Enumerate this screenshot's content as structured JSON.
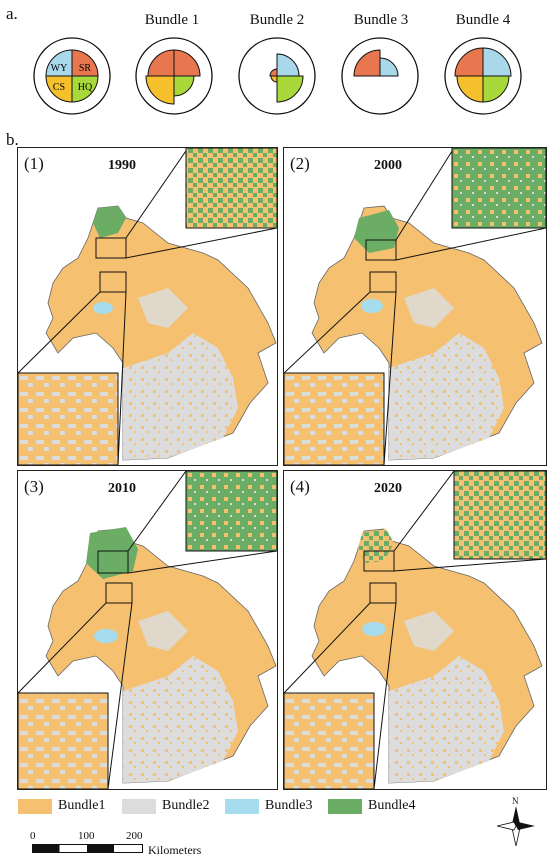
{
  "section_a": {
    "label": "a."
  },
  "section_b": {
    "label": "b."
  },
  "pie_key": {
    "labels": [
      "WY",
      "SR",
      "CS",
      "HQ"
    ]
  },
  "bundles": [
    {
      "title": "Bundle 1"
    },
    {
      "title": "Bundle 2"
    },
    {
      "title": "Bundle 3"
    },
    {
      "title": "Bundle 4"
    }
  ],
  "colors": {
    "WY": "#a8d8ea",
    "SR": "#e8764f",
    "CS": "#f5c02c",
    "HQ": "#a8d83a",
    "bundle1": "#f5c06f",
    "bundle2": "#dcdcdc",
    "bundle3": "#a6dcee",
    "bundle4": "#6cad66"
  },
  "maps": [
    {
      "num": "(1)",
      "year": "1990"
    },
    {
      "num": "(2)",
      "year": "2000"
    },
    {
      "num": "(3)",
      "year": "2010"
    },
    {
      "num": "(4)",
      "year": "2020"
    }
  ],
  "legend": [
    {
      "label": "Bundle1"
    },
    {
      "label": "Bundle2"
    },
    {
      "label": "Bundle3"
    },
    {
      "label": "Bundle4"
    }
  ],
  "scale_bar": {
    "ticks": [
      "0",
      "100",
      "200"
    ],
    "unit": "Kilometers"
  },
  "north_arrow": {
    "label": "N"
  }
}
